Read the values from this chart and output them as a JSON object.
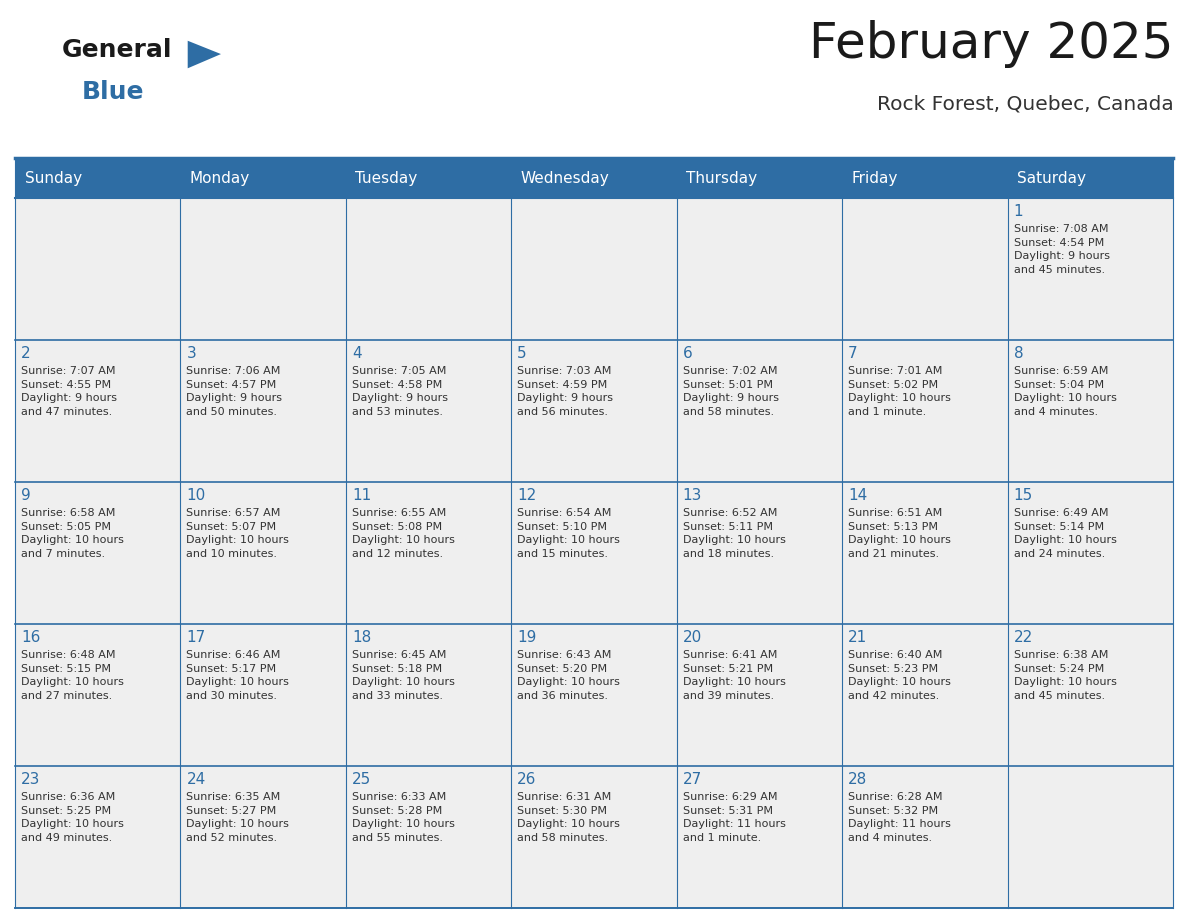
{
  "title": "February 2025",
  "subtitle": "Rock Forest, Quebec, Canada",
  "header_bg": "#2E6DA4",
  "header_text_color": "#FFFFFF",
  "cell_bg": "#EFEFEF",
  "day_number_color": "#2E6DA4",
  "cell_text_color": "#333333",
  "grid_line_color": "#2E6DA4",
  "days_of_week": [
    "Sunday",
    "Monday",
    "Tuesday",
    "Wednesday",
    "Thursday",
    "Friday",
    "Saturday"
  ],
  "logo_general_color": "#1a1a1a",
  "logo_blue_color": "#2E6DA4",
  "logo_triangle_color": "#2E6DA4",
  "title_color": "#1a1a1a",
  "subtitle_color": "#333333",
  "weeks": [
    [
      {
        "day": 0,
        "text": ""
      },
      {
        "day": 0,
        "text": ""
      },
      {
        "day": 0,
        "text": ""
      },
      {
        "day": 0,
        "text": ""
      },
      {
        "day": 0,
        "text": ""
      },
      {
        "day": 0,
        "text": ""
      },
      {
        "day": 1,
        "text": "Sunrise: 7:08 AM\nSunset: 4:54 PM\nDaylight: 9 hours\nand 45 minutes."
      }
    ],
    [
      {
        "day": 2,
        "text": "Sunrise: 7:07 AM\nSunset: 4:55 PM\nDaylight: 9 hours\nand 47 minutes."
      },
      {
        "day": 3,
        "text": "Sunrise: 7:06 AM\nSunset: 4:57 PM\nDaylight: 9 hours\nand 50 minutes."
      },
      {
        "day": 4,
        "text": "Sunrise: 7:05 AM\nSunset: 4:58 PM\nDaylight: 9 hours\nand 53 minutes."
      },
      {
        "day": 5,
        "text": "Sunrise: 7:03 AM\nSunset: 4:59 PM\nDaylight: 9 hours\nand 56 minutes."
      },
      {
        "day": 6,
        "text": "Sunrise: 7:02 AM\nSunset: 5:01 PM\nDaylight: 9 hours\nand 58 minutes."
      },
      {
        "day": 7,
        "text": "Sunrise: 7:01 AM\nSunset: 5:02 PM\nDaylight: 10 hours\nand 1 minute."
      },
      {
        "day": 8,
        "text": "Sunrise: 6:59 AM\nSunset: 5:04 PM\nDaylight: 10 hours\nand 4 minutes."
      }
    ],
    [
      {
        "day": 9,
        "text": "Sunrise: 6:58 AM\nSunset: 5:05 PM\nDaylight: 10 hours\nand 7 minutes."
      },
      {
        "day": 10,
        "text": "Sunrise: 6:57 AM\nSunset: 5:07 PM\nDaylight: 10 hours\nand 10 minutes."
      },
      {
        "day": 11,
        "text": "Sunrise: 6:55 AM\nSunset: 5:08 PM\nDaylight: 10 hours\nand 12 minutes."
      },
      {
        "day": 12,
        "text": "Sunrise: 6:54 AM\nSunset: 5:10 PM\nDaylight: 10 hours\nand 15 minutes."
      },
      {
        "day": 13,
        "text": "Sunrise: 6:52 AM\nSunset: 5:11 PM\nDaylight: 10 hours\nand 18 minutes."
      },
      {
        "day": 14,
        "text": "Sunrise: 6:51 AM\nSunset: 5:13 PM\nDaylight: 10 hours\nand 21 minutes."
      },
      {
        "day": 15,
        "text": "Sunrise: 6:49 AM\nSunset: 5:14 PM\nDaylight: 10 hours\nand 24 minutes."
      }
    ],
    [
      {
        "day": 16,
        "text": "Sunrise: 6:48 AM\nSunset: 5:15 PM\nDaylight: 10 hours\nand 27 minutes."
      },
      {
        "day": 17,
        "text": "Sunrise: 6:46 AM\nSunset: 5:17 PM\nDaylight: 10 hours\nand 30 minutes."
      },
      {
        "day": 18,
        "text": "Sunrise: 6:45 AM\nSunset: 5:18 PM\nDaylight: 10 hours\nand 33 minutes."
      },
      {
        "day": 19,
        "text": "Sunrise: 6:43 AM\nSunset: 5:20 PM\nDaylight: 10 hours\nand 36 minutes."
      },
      {
        "day": 20,
        "text": "Sunrise: 6:41 AM\nSunset: 5:21 PM\nDaylight: 10 hours\nand 39 minutes."
      },
      {
        "day": 21,
        "text": "Sunrise: 6:40 AM\nSunset: 5:23 PM\nDaylight: 10 hours\nand 42 minutes."
      },
      {
        "day": 22,
        "text": "Sunrise: 6:38 AM\nSunset: 5:24 PM\nDaylight: 10 hours\nand 45 minutes."
      }
    ],
    [
      {
        "day": 23,
        "text": "Sunrise: 6:36 AM\nSunset: 5:25 PM\nDaylight: 10 hours\nand 49 minutes."
      },
      {
        "day": 24,
        "text": "Sunrise: 6:35 AM\nSunset: 5:27 PM\nDaylight: 10 hours\nand 52 minutes."
      },
      {
        "day": 25,
        "text": "Sunrise: 6:33 AM\nSunset: 5:28 PM\nDaylight: 10 hours\nand 55 minutes."
      },
      {
        "day": 26,
        "text": "Sunrise: 6:31 AM\nSunset: 5:30 PM\nDaylight: 10 hours\nand 58 minutes."
      },
      {
        "day": 27,
        "text": "Sunrise: 6:29 AM\nSunset: 5:31 PM\nDaylight: 11 hours\nand 1 minute."
      },
      {
        "day": 28,
        "text": "Sunrise: 6:28 AM\nSunset: 5:32 PM\nDaylight: 11 hours\nand 4 minutes."
      },
      {
        "day": 0,
        "text": ""
      }
    ]
  ]
}
